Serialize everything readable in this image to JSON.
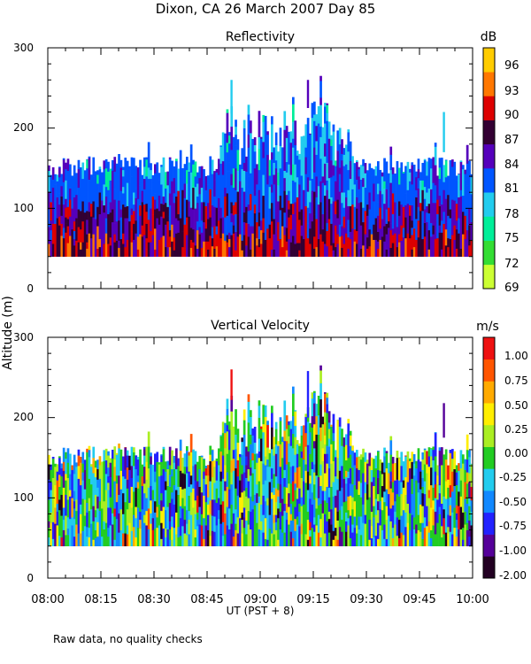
{
  "title": "Dixon, CA 26 March 2007  Day  85",
  "ylabel": "Altitude (m)",
  "xlabel": "UT  (PST + 8)",
  "footnote": "Raw data, no quality checks",
  "colors": {
    "reflectivity": [
      "#ccff33",
      "#33dd33",
      "#00ee99",
      "#22ccee",
      "#0055ff",
      "#5500bb",
      "#330033",
      "#dd0000",
      "#ff7700",
      "#ffcc00"
    ],
    "velocity": [
      "#220022",
      "#550099",
      "#2222ff",
      "#1188ff",
      "#22ccee",
      "#22cc22",
      "#aaee22",
      "#ffee00",
      "#ffaa00",
      "#ff5500",
      "#ee1111"
    ]
  },
  "chart_data": [
    {
      "type": "heatmap",
      "title": "Reflectivity",
      "xlabel": "UT  (PST + 8)",
      "ylabel": "Altitude (m)",
      "x_range": [
        "08:00",
        "10:00"
      ],
      "x_ticks": [
        "08:00",
        "08:15",
        "08:30",
        "08:45",
        "09:00",
        "09:15",
        "09:30",
        "09:45",
        "10:00"
      ],
      "y_ticks": [
        0,
        100,
        200,
        300
      ],
      "ylim": [
        0,
        300
      ],
      "colorbar_label": "dB",
      "colorbar_ticks": [
        "96",
        "93",
        "90",
        "87",
        "84",
        "81",
        "78",
        "75",
        "72",
        "69"
      ],
      "colorbar_range": [
        69,
        97
      ],
      "echo_base_m": 40,
      "typical_top_m": [
        140,
        160
      ],
      "max_top_m": 260
    },
    {
      "type": "heatmap",
      "title": "Vertical Velocity",
      "xlabel": "UT  (PST + 8)",
      "ylabel": "Altitude (m)",
      "x_range": [
        "08:00",
        "10:00"
      ],
      "x_ticks": [
        "08:00",
        "08:15",
        "08:30",
        "08:45",
        "09:00",
        "09:15",
        "09:30",
        "09:45",
        "10:00"
      ],
      "y_ticks": [
        0,
        100,
        200,
        300
      ],
      "ylim": [
        0,
        300
      ],
      "colorbar_label": "m/s",
      "colorbar_ticks": [
        "1.00",
        "0.75",
        "0.50",
        "0.25",
        "0.00",
        "-0.25",
        "-0.50",
        "-0.75",
        "-1.00",
        "-2.00"
      ],
      "colorbar_range": [
        -2.0,
        1.25
      ],
      "echo_base_m": 40,
      "typical_top_m": [
        140,
        160
      ],
      "max_top_m": 260
    }
  ]
}
